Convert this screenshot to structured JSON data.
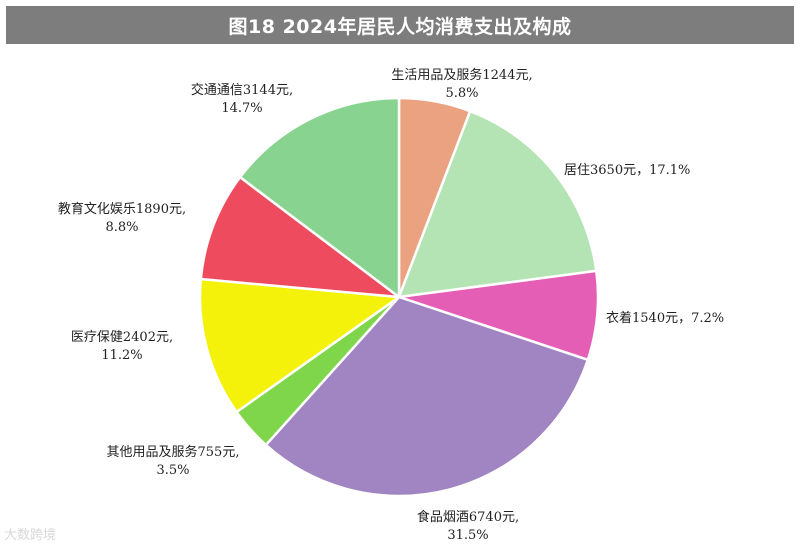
{
  "title": "图18  2024年居民人均消费支出及构成",
  "watermark": "大数跨境",
  "chart_data": {
    "type": "pie",
    "title": "图18  2024年居民人均消费支出及构成",
    "start": "12 o'clock, clockwise",
    "slices": [
      {
        "name": "生活用品及服务",
        "value": 1244,
        "percent": 5.8,
        "color": "#eba281",
        "label_line1": "生活用品及服务1244元,",
        "label_line2": "5.8%"
      },
      {
        "name": "居住",
        "value": 3650,
        "percent": 17.1,
        "color": "#b4e3b4",
        "label_line1": "居住3650元，17.1%",
        "label_line2": ""
      },
      {
        "name": "衣着",
        "value": 1540,
        "percent": 7.2,
        "color": "#e55eb6",
        "label_line1": "衣着1540元，7.2%",
        "label_line2": ""
      },
      {
        "name": "食品烟酒",
        "value": 6740,
        "percent": 31.5,
        "color": "#a085c2",
        "label_line1": "食品烟酒6740元,",
        "label_line2": "31.5%"
      },
      {
        "name": "其他用品及服务",
        "value": 755,
        "percent": 3.5,
        "color": "#7fd64a",
        "label_line1": "其他用品及服务755元,",
        "label_line2": "3.5%"
      },
      {
        "name": "医疗保健",
        "value": 2402,
        "percent": 11.2,
        "color": "#f4f20a",
        "label_line1": "医疗保健2402元,",
        "label_line2": "11.2%"
      },
      {
        "name": "教育文化娱乐",
        "value": 1890,
        "percent": 8.8,
        "color": "#ee4b5e",
        "label_line1": "教育文化娱乐1890元,",
        "label_line2": "8.8%"
      },
      {
        "name": "交通通信",
        "value": 3144,
        "percent": 14.7,
        "color": "#88d38f",
        "label_line1": "交通通信3144元,",
        "label_line2": "14.7%"
      }
    ]
  }
}
